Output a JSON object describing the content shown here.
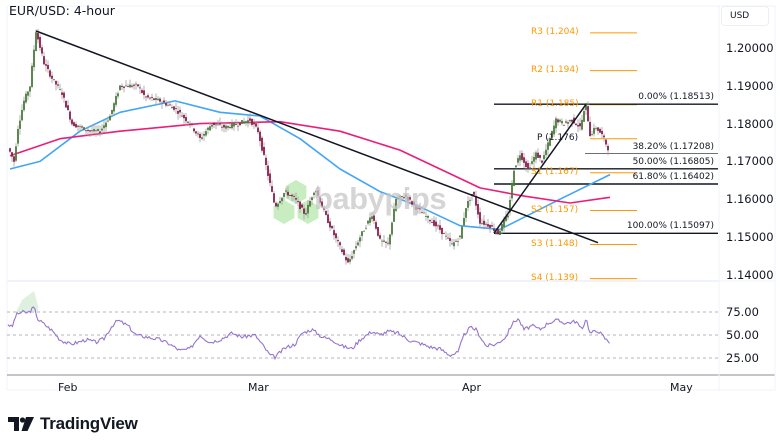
{
  "header": {
    "title": "EUR/USD: 4-hour",
    "currency_badge": "USD"
  },
  "price_axis": {
    "labels": [
      {
        "text": "1.20000",
        "value": 1.2
      },
      {
        "text": "1.19000",
        "value": 1.19
      },
      {
        "text": "1.18000",
        "value": 1.18
      },
      {
        "text": "1.17000",
        "value": 1.17
      },
      {
        "text": "1.16000",
        "value": 1.16
      },
      {
        "text": "1.15000",
        "value": 1.15
      },
      {
        "text": "1.14000",
        "value": 1.14
      }
    ]
  },
  "rsi_axis": {
    "labels": [
      {
        "text": "75.00",
        "value": 75
      },
      {
        "text": "50.00",
        "value": 50
      },
      {
        "text": "25.00",
        "value": 25
      }
    ]
  },
  "time_axis": {
    "labels": [
      "Feb",
      "Mar",
      "Apr",
      "May"
    ]
  },
  "pivots": [
    {
      "label": "R3 (1.204)",
      "value": 1.204
    },
    {
      "label": "R2 (1.194)",
      "value": 1.194
    },
    {
      "label": "R1 (1.185)",
      "value": 1.185
    },
    {
      "label": "P (1.176)",
      "value": 1.176
    },
    {
      "label": "S1 (1.167)",
      "value": 1.167
    },
    {
      "label": "S2 (1.157)",
      "value": 1.157
    },
    {
      "label": "S3 (1.148)",
      "value": 1.148
    },
    {
      "label": "S4 (1.139)",
      "value": 1.139
    }
  ],
  "fibonacci": [
    {
      "label": "0.00% (1.18513)",
      "value": 1.18513
    },
    {
      "label": "38.20% (1.17208)",
      "value": 1.17208
    },
    {
      "label": "50.00% (1.16805)",
      "value": 1.16805
    },
    {
      "label": "61.80% (1.16402)",
      "value": 1.16402
    },
    {
      "label": "100.00% (1.15097)",
      "value": 1.15097
    }
  ],
  "watermark": {
    "text": "babypips"
  },
  "brand": {
    "name": "TradingView"
  },
  "colors": {
    "bull": "#4a7c3a",
    "bear": "#8b1a4a",
    "wick": "#a0a0a0",
    "ma_fast": "#42a5f5",
    "ma_slow": "#e91e7a",
    "pivot": "#ff9800",
    "trendline": "#131722",
    "rsi": "#9575cd",
    "grid_dash": "#b2b5be"
  },
  "chart_data": {
    "type": "candlestick",
    "title": "EUR/USD: 4-hour",
    "xlabel": "",
    "ylabel": "USD",
    "ylim": [
      1.138,
      1.207
    ],
    "x_ticks": [
      "Feb",
      "Mar",
      "Apr",
      "May"
    ],
    "price_path_key_points": [
      {
        "x": 10,
        "price": 1.1725
      },
      {
        "x": 14,
        "price": 1.17
      },
      {
        "x": 18,
        "price": 1.179
      },
      {
        "x": 24,
        "price": 1.186
      },
      {
        "x": 30,
        "price": 1.19
      },
      {
        "x": 36,
        "price": 1.2045
      },
      {
        "x": 44,
        "price": 1.196
      },
      {
        "x": 52,
        "price": 1.192
      },
      {
        "x": 62,
        "price": 1.188
      },
      {
        "x": 72,
        "price": 1.18
      },
      {
        "x": 80,
        "price": 1.179
      },
      {
        "x": 90,
        "price": 1.178
      },
      {
        "x": 100,
        "price": 1.178
      },
      {
        "x": 110,
        "price": 1.182
      },
      {
        "x": 120,
        "price": 1.19
      },
      {
        "x": 130,
        "price": 1.19
      },
      {
        "x": 138,
        "price": 1.19
      },
      {
        "x": 145,
        "price": 1.187
      },
      {
        "x": 160,
        "price": 1.186
      },
      {
        "x": 175,
        "price": 1.184
      },
      {
        "x": 190,
        "price": 1.18
      },
      {
        "x": 200,
        "price": 1.176
      },
      {
        "x": 212,
        "price": 1.18
      },
      {
        "x": 225,
        "price": 1.179
      },
      {
        "x": 238,
        "price": 1.18
      },
      {
        "x": 250,
        "price": 1.181
      },
      {
        "x": 258,
        "price": 1.178
      },
      {
        "x": 265,
        "price": 1.17
      },
      {
        "x": 275,
        "price": 1.158
      },
      {
        "x": 285,
        "price": 1.162
      },
      {
        "x": 295,
        "price": 1.16
      },
      {
        "x": 305,
        "price": 1.156
      },
      {
        "x": 315,
        "price": 1.163
      },
      {
        "x": 325,
        "price": 1.156
      },
      {
        "x": 335,
        "price": 1.15
      },
      {
        "x": 348,
        "price": 1.143
      },
      {
        "x": 360,
        "price": 1.15
      },
      {
        "x": 372,
        "price": 1.156
      },
      {
        "x": 380,
        "price": 1.149
      },
      {
        "x": 388,
        "price": 1.148
      },
      {
        "x": 396,
        "price": 1.16
      },
      {
        "x": 405,
        "price": 1.161
      },
      {
        "x": 415,
        "price": 1.158
      },
      {
        "x": 428,
        "price": 1.155
      },
      {
        "x": 440,
        "price": 1.152
      },
      {
        "x": 452,
        "price": 1.148
      },
      {
        "x": 460,
        "price": 1.15
      },
      {
        "x": 466,
        "price": 1.158
      },
      {
        "x": 473,
        "price": 1.162
      },
      {
        "x": 480,
        "price": 1.154
      },
      {
        "x": 490,
        "price": 1.153
      },
      {
        "x": 498,
        "price": 1.151
      },
      {
        "x": 508,
        "price": 1.156
      },
      {
        "x": 514,
        "price": 1.168
      },
      {
        "x": 520,
        "price": 1.172
      },
      {
        "x": 528,
        "price": 1.168
      },
      {
        "x": 536,
        "price": 1.172
      },
      {
        "x": 542,
        "price": 1.17
      },
      {
        "x": 550,
        "price": 1.176
      },
      {
        "x": 556,
        "price": 1.181
      },
      {
        "x": 564,
        "price": 1.18
      },
      {
        "x": 572,
        "price": 1.181
      },
      {
        "x": 580,
        "price": 1.179
      },
      {
        "x": 586,
        "price": 1.185
      },
      {
        "x": 590,
        "price": 1.177
      },
      {
        "x": 596,
        "price": 1.179
      },
      {
        "x": 602,
        "price": 1.177
      },
      {
        "x": 608,
        "price": 1.1735
      }
    ],
    "series": [
      {
        "name": "MA fast (blue)",
        "key_points": [
          [
            10,
            1.168
          ],
          [
            40,
            1.17
          ],
          [
            80,
            1.178
          ],
          [
            120,
            1.183
          ],
          [
            175,
            1.186
          ],
          [
            220,
            1.183
          ],
          [
            260,
            1.182
          ],
          [
            300,
            1.176
          ],
          [
            340,
            1.168
          ],
          [
            380,
            1.162
          ],
          [
            420,
            1.158
          ],
          [
            460,
            1.153
          ],
          [
            500,
            1.152
          ],
          [
            530,
            1.156
          ],
          [
            560,
            1.16
          ],
          [
            610,
            1.1665
          ]
        ]
      },
      {
        "name": "MA slow (magenta)",
        "key_points": [
          [
            10,
            1.1715
          ],
          [
            60,
            1.176
          ],
          [
            120,
            1.178
          ],
          [
            200,
            1.18
          ],
          [
            280,
            1.1805
          ],
          [
            340,
            1.178
          ],
          [
            400,
            1.173
          ],
          [
            440,
            1.168
          ],
          [
            480,
            1.163
          ],
          [
            520,
            1.161
          ],
          [
            570,
            1.159
          ],
          [
            610,
            1.1605
          ]
        ]
      }
    ],
    "trendlines": [
      {
        "from": {
          "x": 36,
          "price": 1.2045
        },
        "to": {
          "x": 598,
          "price": 1.1485
        }
      },
      {
        "from": {
          "x": 494,
          "price": 1.151
        },
        "to": {
          "x": 586,
          "price": 1.1851
        }
      }
    ],
    "rsi": {
      "ylim": [
        0,
        100
      ],
      "levels": [
        75,
        50,
        25
      ],
      "key_points": [
        [
          8,
          62
        ],
        [
          12,
          58
        ],
        [
          16,
          72
        ],
        [
          22,
          75
        ],
        [
          28,
          74
        ],
        [
          34,
          80
        ],
        [
          38,
          67
        ],
        [
          44,
          62
        ],
        [
          52,
          55
        ],
        [
          60,
          45
        ],
        [
          70,
          40
        ],
        [
          78,
          42
        ],
        [
          86,
          45
        ],
        [
          96,
          42
        ],
        [
          104,
          46
        ],
        [
          112,
          60
        ],
        [
          118,
          66
        ],
        [
          128,
          60
        ],
        [
          136,
          50
        ],
        [
          146,
          48
        ],
        [
          160,
          45
        ],
        [
          170,
          40
        ],
        [
          180,
          33
        ],
        [
          190,
          35
        ],
        [
          200,
          50
        ],
        [
          210,
          42
        ],
        [
          220,
          45
        ],
        [
          232,
          52
        ],
        [
          242,
          48
        ],
        [
          255,
          50
        ],
        [
          262,
          40
        ],
        [
          270,
          28
        ],
        [
          275,
          26
        ],
        [
          285,
          36
        ],
        [
          295,
          40
        ],
        [
          302,
          52
        ],
        [
          312,
          56
        ],
        [
          322,
          48
        ],
        [
          332,
          45
        ],
        [
          342,
          38
        ],
        [
          352,
          35
        ],
        [
          360,
          45
        ],
        [
          372,
          54
        ],
        [
          380,
          50
        ],
        [
          388,
          54
        ],
        [
          398,
          52
        ],
        [
          410,
          44
        ],
        [
          420,
          41
        ],
        [
          430,
          37
        ],
        [
          440,
          35
        ],
        [
          450,
          28
        ],
        [
          458,
          31
        ],
        [
          464,
          50
        ],
        [
          470,
          58
        ],
        [
          476,
          56
        ],
        [
          486,
          38
        ],
        [
          496,
          40
        ],
        [
          506,
          48
        ],
        [
          512,
          62
        ],
        [
          518,
          68
        ],
        [
          524,
          56
        ],
        [
          532,
          60
        ],
        [
          540,
          56
        ],
        [
          548,
          63
        ],
        [
          556,
          66
        ],
        [
          566,
          63
        ],
        [
          576,
          65
        ],
        [
          582,
          55
        ],
        [
          586,
          69
        ],
        [
          590,
          52
        ],
        [
          598,
          55
        ],
        [
          606,
          45
        ],
        [
          610,
          42
        ]
      ]
    }
  }
}
